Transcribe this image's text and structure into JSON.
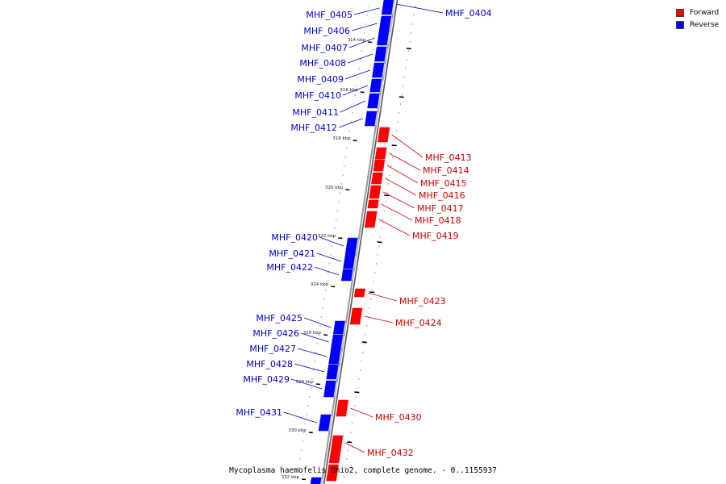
{
  "caption": "Mycoplasma haemofelis Ohio2, complete genome. - 0..1155937",
  "legend": [
    {
      "label": "Forward",
      "color": "#ff0000"
    },
    {
      "label": "Reverse",
      "color": "#0000ff"
    }
  ],
  "colors": {
    "forward": "#ff0000",
    "reverse": "#0000ff",
    "backbone": "#888888"
  },
  "ticks": [
    {
      "kbp": 314,
      "label": "314 kbp"
    },
    {
      "kbp": 316,
      "label": "316 kbp"
    },
    {
      "kbp": 318,
      "label": "318 kbp"
    },
    {
      "kbp": 320,
      "label": "320 kbp"
    },
    {
      "kbp": 322,
      "label": "322 kbp"
    },
    {
      "kbp": 324,
      "label": "324 kbp"
    },
    {
      "kbp": 326,
      "label": "326 kbp"
    },
    {
      "kbp": 328,
      "label": "328 kbp"
    },
    {
      "kbp": 330,
      "label": "330 kbp"
    },
    {
      "kbp": 332,
      "label": "332 kbp"
    }
  ],
  "genes": [
    {
      "name": "MHF_0404",
      "strand": "reverse"
    },
    {
      "name": "MHF_0405",
      "strand": "reverse"
    },
    {
      "name": "MHF_0406",
      "strand": "reverse"
    },
    {
      "name": "MHF_0407",
      "strand": "reverse"
    },
    {
      "name": "MHF_0408",
      "strand": "reverse"
    },
    {
      "name": "MHF_0409",
      "strand": "reverse"
    },
    {
      "name": "MHF_0410",
      "strand": "reverse"
    },
    {
      "name": "MHF_0411",
      "strand": "reverse"
    },
    {
      "name": "MHF_0412",
      "strand": "reverse"
    },
    {
      "name": "MHF_0413",
      "strand": "forward"
    },
    {
      "name": "MHF_0414",
      "strand": "forward"
    },
    {
      "name": "MHF_0415",
      "strand": "forward"
    },
    {
      "name": "MHF_0416",
      "strand": "forward"
    },
    {
      "name": "MHF_0417",
      "strand": "forward"
    },
    {
      "name": "MHF_0418",
      "strand": "forward"
    },
    {
      "name": "MHF_0419",
      "strand": "forward"
    },
    {
      "name": "MHF_0420",
      "strand": "reverse"
    },
    {
      "name": "MHF_0421",
      "strand": "reverse"
    },
    {
      "name": "MHF_0422",
      "strand": "reverse"
    },
    {
      "name": "MHF_0423",
      "strand": "forward"
    },
    {
      "name": "MHF_0424",
      "strand": "forward"
    },
    {
      "name": "MHF_0425",
      "strand": "reverse"
    },
    {
      "name": "MHF_0426",
      "strand": "reverse"
    },
    {
      "name": "MHF_0427",
      "strand": "reverse"
    },
    {
      "name": "MHF_0428",
      "strand": "reverse"
    },
    {
      "name": "MHF_0429",
      "strand": "reverse"
    },
    {
      "name": "MHF_0430",
      "strand": "forward"
    },
    {
      "name": "MHF_0431",
      "strand": "reverse"
    },
    {
      "name": "MHF_0432",
      "strand": "forward"
    }
  ]
}
